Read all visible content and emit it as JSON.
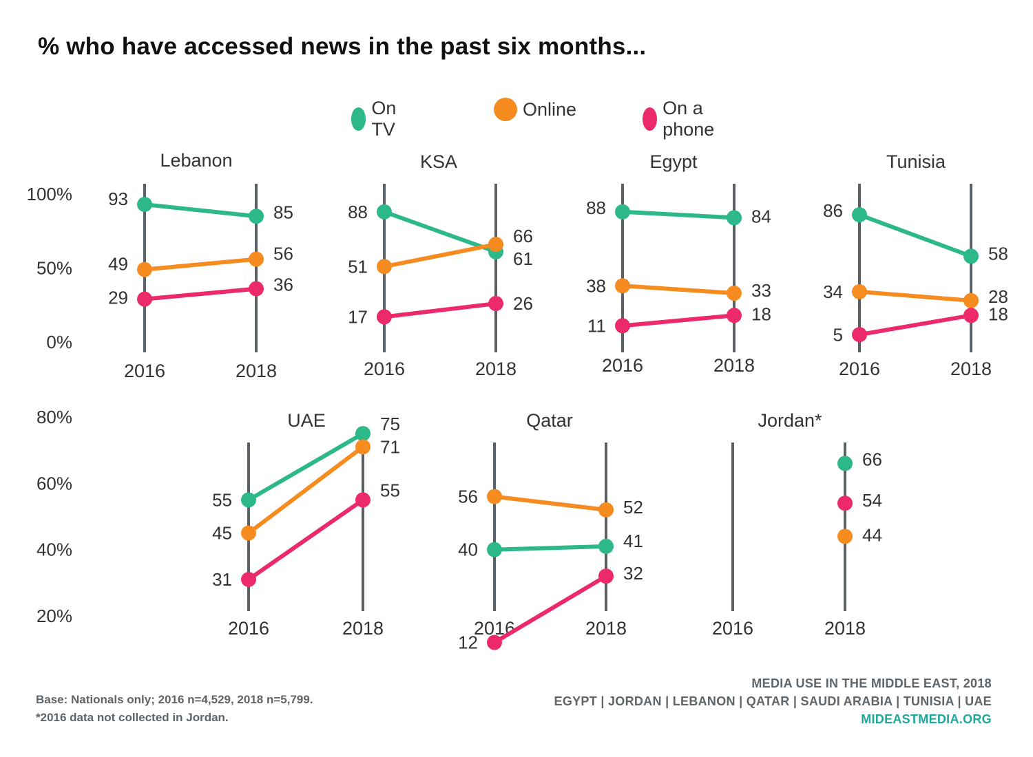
{
  "title": "% who have accessed news in the past six months...",
  "legend": [
    {
      "label": "On TV",
      "color": "#2db88a"
    },
    {
      "label": "Online",
      "color": "#f68b1f"
    },
    {
      "label": "On a phone",
      "color": "#ec2a6a"
    }
  ],
  "colors": {
    "tv": "#2db88a",
    "online": "#f68b1f",
    "phone": "#ec2a6a",
    "axis": "#5a6065"
  },
  "chart_data": [
    {
      "type": "line",
      "title": "Lebanon",
      "x": [
        "2016",
        "2018"
      ],
      "ylim": [
        0,
        100
      ],
      "yticks": [
        {
          "value": 100,
          "label": "100%"
        },
        {
          "value": 50,
          "label": "50%"
        },
        {
          "value": 0,
          "label": "0%"
        }
      ],
      "series": [
        {
          "name": "On TV",
          "values": [
            93,
            85
          ]
        },
        {
          "name": "Online",
          "values": [
            49,
            56
          ]
        },
        {
          "name": "On a phone",
          "values": [
            29,
            36
          ]
        }
      ]
    },
    {
      "type": "line",
      "title": "KSA",
      "x": [
        "2016",
        "2018"
      ],
      "ylim": [
        0,
        100
      ],
      "series": [
        {
          "name": "On TV",
          "values": [
            88,
            61
          ]
        },
        {
          "name": "Online",
          "values": [
            51,
            66
          ]
        },
        {
          "name": "On a phone",
          "values": [
            17,
            26
          ]
        }
      ]
    },
    {
      "type": "line",
      "title": "Egypt",
      "x": [
        "2016",
        "2018"
      ],
      "ylim": [
        0,
        100
      ],
      "series": [
        {
          "name": "On TV",
          "values": [
            88,
            84
          ]
        },
        {
          "name": "Online",
          "values": [
            38,
            33
          ]
        },
        {
          "name": "On a phone",
          "values": [
            11,
            18
          ]
        }
      ]
    },
    {
      "type": "line",
      "title": "Tunisia",
      "x": [
        "2016",
        "2018"
      ],
      "ylim": [
        0,
        100
      ],
      "series": [
        {
          "name": "On TV",
          "values": [
            86,
            58
          ]
        },
        {
          "name": "Online",
          "values": [
            34,
            28
          ]
        },
        {
          "name": "On a phone",
          "values": [
            5,
            18
          ]
        }
      ]
    },
    {
      "type": "line",
      "title": "UAE",
      "x": [
        "2016",
        "2018"
      ],
      "ylim": [
        20,
        80
      ],
      "yticks": [
        {
          "value": 80,
          "label": "80%"
        },
        {
          "value": 60,
          "label": "60%"
        },
        {
          "value": 40,
          "label": "40%"
        },
        {
          "value": 20,
          "label": "20%"
        }
      ],
      "series": [
        {
          "name": "On TV",
          "values": [
            55,
            75
          ]
        },
        {
          "name": "Online",
          "values": [
            45,
            71
          ]
        },
        {
          "name": "On a phone",
          "values": [
            31,
            55
          ]
        }
      ]
    },
    {
      "type": "line",
      "title": "Qatar",
      "x": [
        "2016",
        "2018"
      ],
      "ylim": [
        20,
        80
      ],
      "series": [
        {
          "name": "On TV",
          "values": [
            40,
            41
          ]
        },
        {
          "name": "Online",
          "values": [
            56,
            52
          ]
        },
        {
          "name": "On a phone",
          "values": [
            12,
            32
          ]
        }
      ]
    },
    {
      "type": "line",
      "title": "Jordan*",
      "x": [
        "2016",
        "2018"
      ],
      "ylim": [
        20,
        80
      ],
      "series": [
        {
          "name": "On TV",
          "values": [
            null,
            66
          ]
        },
        {
          "name": "On a phone",
          "values": [
            null,
            54
          ]
        },
        {
          "name": "Online",
          "values": [
            null,
            44
          ]
        }
      ]
    }
  ],
  "footer": {
    "base_note": "Base: Nationals only; 2016 n=4,529, 2018 n=5,799.",
    "jordan_note": "*2016 data not collected in Jordan.",
    "source_line1": "MEDIA USE IN THE MIDDLE EAST, 2018",
    "source_line2": "EGYPT | JORDAN | LEBANON | QATAR | SAUDI ARABIA | TUNISIA | UAE",
    "source_url": "MIDEASTMEDIA.ORG"
  }
}
